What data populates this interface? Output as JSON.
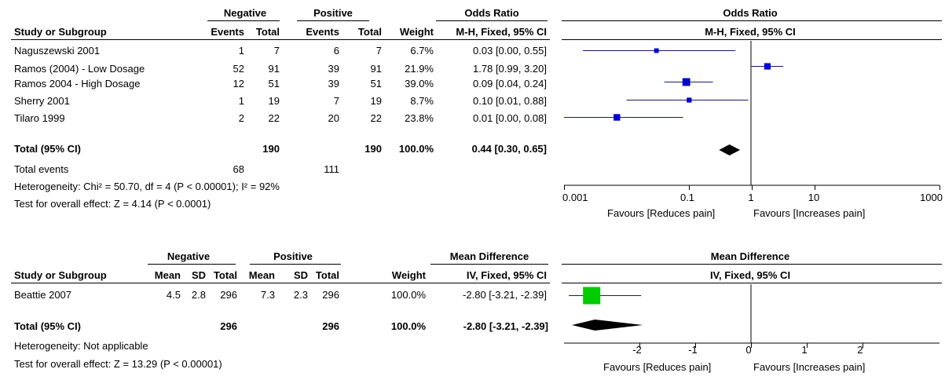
{
  "chart_data": [
    {
      "type": "table",
      "forest_type": "forest",
      "group_headers": [
        "Negative",
        "Positive"
      ],
      "effect_header": "Odds Ratio",
      "effect_subheader": "M-H, Fixed, 95% CI",
      "columns": [
        "Study or Subgroup",
        "Events",
        "Total",
        "Events",
        "Total",
        "Weight",
        "M-H, Fixed, 95% CI"
      ],
      "rows": [
        {
          "study": "Naguszewski 2001",
          "neg_events": "1",
          "neg_total": "7",
          "pos_events": "6",
          "pos_total": "7",
          "weight": "6.7%",
          "ci_text": "0.03 [0.00, 0.55]",
          "est": 0.03,
          "lo": 0.002,
          "hi": 0.55,
          "w": 6.7
        },
        {
          "study": "Ramos (2004) - Low Dosage",
          "neg_events": "52",
          "neg_total": "91",
          "pos_events": "39",
          "pos_total": "91",
          "weight": "21.9%",
          "ci_text": "1.78 [0.99, 3.20]",
          "est": 1.78,
          "lo": 0.99,
          "hi": 3.2,
          "w": 21.9
        },
        {
          "study": "Ramos 2004 - High Dosage",
          "neg_events": "12",
          "neg_total": "51",
          "pos_events": "39",
          "pos_total": "51",
          "weight": "39.0%",
          "ci_text": "0.09 [0.04, 0.24]",
          "est": 0.09,
          "lo": 0.04,
          "hi": 0.24,
          "w": 39.0
        },
        {
          "study": "Sherry 2001",
          "neg_events": "1",
          "neg_total": "19",
          "pos_events": "7",
          "pos_total": "19",
          "weight": "8.7%",
          "ci_text": "0.10 [0.01, 0.88]",
          "est": 0.1,
          "lo": 0.01,
          "hi": 0.88,
          "w": 8.7
        },
        {
          "study": "Tilaro 1999",
          "neg_events": "2",
          "neg_total": "22",
          "pos_events": "20",
          "pos_total": "22",
          "weight": "23.8%",
          "ci_text": "0.01 [0.00, 0.08]",
          "est": 0.007,
          "lo": 0.001,
          "hi": 0.08,
          "w": 23.8
        }
      ],
      "total": {
        "label": "Total (95% CI)",
        "neg_total": "190",
        "pos_total": "190",
        "weight": "100.0%",
        "ci_text": "0.44 [0.30, 0.65]",
        "est": 0.44,
        "lo": 0.3,
        "hi": 0.65
      },
      "total_events": {
        "label": "Total events",
        "neg": "68",
        "pos": "111"
      },
      "heterogeneity": "Heterogeneity: Chi² = 50.70, df = 4 (P < 0.00001); I² = 92%",
      "overall_effect": "Test for overall effect: Z = 4.14 (P < 0.0001)",
      "axis_scale": "log",
      "xlim": [
        0.001,
        1000
      ],
      "ticks": [
        0.001,
        0.1,
        1,
        10,
        1000
      ],
      "tick_labels": [
        "0.001",
        "0.1",
        "1",
        "10",
        "1000"
      ],
      "favours_left": "Favours [Reduces pain]",
      "favours_right": "Favours [Increases pain]",
      "marker_color": "#0000cc"
    },
    {
      "type": "table",
      "forest_type": "forest",
      "group_headers": [
        "Negative",
        "Positive"
      ],
      "effect_header": "Mean Difference",
      "effect_subheader": "IV, Fixed, 95% CI",
      "columns": [
        "Study or Subgroup",
        "Mean",
        "SD",
        "Total",
        "Mean",
        "SD",
        "Total",
        "Weight",
        "IV, Fixed, 95% CI"
      ],
      "rows": [
        {
          "study": "Beattie 2007",
          "neg_mean": "4.5",
          "neg_sd": "2.8",
          "neg_total": "296",
          "pos_mean": "7.3",
          "pos_sd": "2.3",
          "pos_total": "296",
          "weight": "100.0%",
          "ci_text": "-2.80 [-3.21, -2.39]",
          "est": -2.8,
          "lo": -3.21,
          "hi": -2.39,
          "w": 100.0
        }
      ],
      "total": {
        "label": "Total (95% CI)",
        "neg_total": "296",
        "pos_total": "296",
        "weight": "100.0%",
        "ci_text": "-2.80 [-3.21, -2.39]",
        "est": -2.8,
        "lo": -3.21,
        "hi": -2.39
      },
      "heterogeneity": "Heterogeneity: Not applicable",
      "overall_effect": "Test for overall effect: Z = 13.29 (P < 0.00001)",
      "axis_scale": "linear",
      "xlim": [
        -4,
        4
      ],
      "ticks": [
        -2,
        -1,
        0,
        1,
        2
      ],
      "tick_labels": [
        "-2",
        "-1",
        "0",
        "1",
        "2"
      ],
      "favours_left": "Favours [Reduces pain]",
      "favours_right": "Favours [Increases pain]",
      "marker_color": "#00cc00"
    }
  ]
}
